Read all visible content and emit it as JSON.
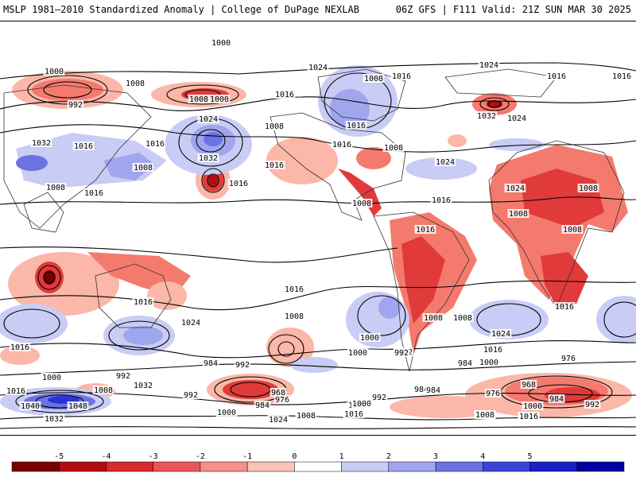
{
  "header": {
    "left_title": "MSLP 1981–2010 Standardized Anomaly | College of DuPage NEXLAB",
    "right_title": "06Z GFS | F111 Valid: 21Z SUN MAR 30 2025"
  },
  "colors": {
    "neg_strong": "#b50b12",
    "neg_mid": "#e03a3a",
    "neg_light": "#f47a6e",
    "neg_pale": "#fbb7a8",
    "pos_pale": "#c9ccf5",
    "pos_light": "#9fa6ee",
    "pos_mid": "#6b73e2",
    "pos_strong": "#2c33d6",
    "land_border": "#333333"
  },
  "isobar_labels": [
    {
      "text": "1000"
    },
    {
      "text": "992"
    },
    {
      "text": "1008"
    },
    {
      "text": "1008"
    },
    {
      "text": "1000"
    },
    {
      "text": "1016"
    },
    {
      "text": "1024"
    },
    {
      "text": "1024"
    },
    {
      "text": "1016"
    },
    {
      "text": "1008"
    },
    {
      "text": "1000"
    },
    {
      "text": "1016"
    },
    {
      "text": "1016"
    },
    {
      "text": "1032"
    },
    {
      "text": "1024"
    },
    {
      "text": "1016"
    },
    {
      "text": "1032"
    },
    {
      "text": "1024"
    },
    {
      "text": "1008"
    },
    {
      "text": "1016"
    },
    {
      "text": "1016"
    },
    {
      "text": "1024"
    },
    {
      "text": "1032"
    },
    {
      "text": "1016"
    },
    {
      "text": "1008"
    },
    {
      "text": "1016"
    },
    {
      "text": "1008"
    },
    {
      "text": "1016"
    },
    {
      "text": "1016"
    },
    {
      "text": "1008"
    },
    {
      "text": "1016"
    },
    {
      "text": "1008"
    },
    {
      "text": "1024"
    },
    {
      "text": "1008"
    },
    {
      "text": "1008"
    },
    {
      "text": "1008"
    },
    {
      "text": "1016"
    },
    {
      "text": "1016"
    },
    {
      "text": "1016"
    },
    {
      "text": "1024"
    },
    {
      "text": "1016"
    },
    {
      "text": "1008"
    },
    {
      "text": "1024"
    },
    {
      "text": "1016"
    },
    {
      "text": "1008"
    },
    {
      "text": "1000"
    },
    {
      "text": "1008"
    },
    {
      "text": "992"
    },
    {
      "text": "1016"
    },
    {
      "text": "1000"
    },
    {
      "text": "992"
    },
    {
      "text": "984"
    },
    {
      "text": "992"
    },
    {
      "text": "1000"
    },
    {
      "text": "984"
    },
    {
      "text": "1032"
    },
    {
      "text": "1008"
    },
    {
      "text": "1016"
    },
    {
      "text": "1000"
    },
    {
      "text": "1040"
    },
    {
      "text": "1048"
    },
    {
      "text": "1032"
    },
    {
      "text": "992"
    },
    {
      "text": "992"
    },
    {
      "text": "968"
    },
    {
      "text": "976"
    },
    {
      "text": "984"
    },
    {
      "text": "1000"
    },
    {
      "text": "1008"
    },
    {
      "text": "1024"
    },
    {
      "text": "1016"
    },
    {
      "text": "1000"
    },
    {
      "text": "992"
    },
    {
      "text": "984"
    },
    {
      "text": "984"
    },
    {
      "text": "976"
    },
    {
      "text": "968"
    },
    {
      "text": "976"
    },
    {
      "text": "984"
    },
    {
      "text": "992"
    },
    {
      "text": "1000"
    },
    {
      "text": "1008"
    },
    {
      "text": "1016"
    },
    {
      "text": "1008"
    },
    {
      "text": "1016"
    },
    {
      "text": "1000"
    }
  ],
  "colorbar": {
    "ticks": [
      "-5",
      "-4",
      "-3",
      "-2",
      "-1",
      "0",
      "1",
      "2",
      "3",
      "4",
      "5"
    ],
    "colors": [
      "#7a0000",
      "#b50b12",
      "#d8292b",
      "#e8565a",
      "#f5908b",
      "#fbc3ba",
      "#ffffff",
      "#c9ccf5",
      "#9fa6ee",
      "#6b73e2",
      "#3c44d8",
      "#1a1fc8",
      "#0000a0"
    ]
  }
}
